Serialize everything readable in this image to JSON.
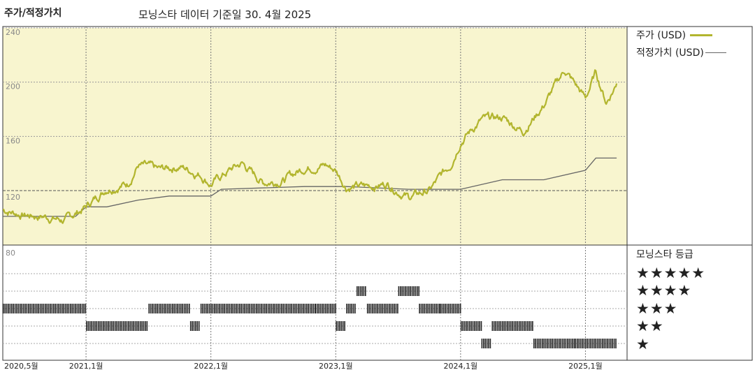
{
  "title": "주가/적정가치",
  "subtitle": "모닝스타 데이터 기준일 30. 4월 2025",
  "legend": {
    "price_label": "주가 (USD)",
    "fair_label": "적정가치 (USD)",
    "price_color": "#b2b52e",
    "fair_color": "#666666"
  },
  "rating": {
    "title": "모닝스타 등급",
    "stars": [
      "★★★★★",
      "★★★★",
      "★★★",
      "★★",
      "★"
    ]
  },
  "chart_data": {
    "type": "line",
    "y_ticks": [
      "240",
      "200",
      "160",
      "120",
      "80"
    ],
    "x_ticks": [
      "2020,5월",
      "2021,1월",
      "2022,1월",
      "2023,1월",
      "2024,1월",
      "2025,1월"
    ],
    "ylim": [
      80,
      240
    ],
    "shaded_range": [
      120,
      240
    ],
    "series": [
      {
        "name": "주가 (USD)",
        "x": [
          "2020-05",
          "2020-07",
          "2020-09",
          "2020-11",
          "2021-01",
          "2021-03",
          "2021-05",
          "2021-06",
          "2021-08",
          "2021-10",
          "2021-12",
          "2022-01",
          "2022-03",
          "2022-04",
          "2022-06",
          "2022-08",
          "2022-10",
          "2022-12",
          "2023-01",
          "2023-02",
          "2023-04",
          "2023-06",
          "2023-08",
          "2023-10",
          "2023-12",
          "2024-01",
          "2024-03",
          "2024-05",
          "2024-07",
          "2024-09",
          "2024-11",
          "2025-01",
          "2025-02",
          "2025-03",
          "2025-04"
        ],
        "values": [
          106,
          102,
          101,
          98,
          108,
          122,
          125,
          139,
          135,
          138,
          132,
          125,
          136,
          140,
          126,
          128,
          137,
          139,
          135,
          123,
          123,
          125,
          115,
          120,
          139,
          157,
          172,
          174,
          164,
          183,
          209,
          188,
          207,
          185,
          199
        ]
      },
      {
        "name": "적정가치 (USD)",
        "x": [
          "2020-05",
          "2020-12",
          "2021-01",
          "2021-03",
          "2021-06",
          "2021-09",
          "2022-01",
          "2022-02",
          "2022-10",
          "2023-02",
          "2023-08",
          "2024-01",
          "2024-05",
          "2024-09",
          "2025-01",
          "2025-02",
          "2025-04"
        ],
        "values": [
          101,
          101,
          108,
          108,
          113,
          116,
          116,
          121,
          123,
          123,
          121,
          121,
          128,
          128,
          135,
          144,
          144
        ]
      }
    ],
    "star_rating_periods": [
      {
        "start": "2020-05",
        "end": "2021-01",
        "stars": 3
      },
      {
        "start": "2021-01",
        "end": "2021-07",
        "stars": 2
      },
      {
        "start": "2021-07",
        "end": "2021-11",
        "stars": 3
      },
      {
        "start": "2021-11",
        "end": "2021-12",
        "stars": 2
      },
      {
        "start": "2021-12",
        "end": "2022-11",
        "stars": 3
      },
      {
        "start": "2022-11",
        "end": "2023-01",
        "stars": 3
      },
      {
        "start": "2023-01",
        "end": "2023-02",
        "stars": 2
      },
      {
        "start": "2023-02",
        "end": "2023-03",
        "stars": 3
      },
      {
        "start": "2023-03",
        "end": "2023-04",
        "stars": 4
      },
      {
        "start": "2023-04",
        "end": "2023-07",
        "stars": 3
      },
      {
        "start": "2023-07",
        "end": "2023-09",
        "stars": 4
      },
      {
        "start": "2023-09",
        "end": "2023-11",
        "stars": 3
      },
      {
        "start": "2023-11",
        "end": "2024-01",
        "stars": 3
      },
      {
        "start": "2024-01",
        "end": "2024-03",
        "stars": 2
      },
      {
        "start": "2024-03",
        "end": "2024-04",
        "stars": 1
      },
      {
        "start": "2024-04",
        "end": "2024-08",
        "stars": 2
      },
      {
        "start": "2024-08",
        "end": "2024-12",
        "stars": 1
      },
      {
        "start": "2024-12",
        "end": "2025-04",
        "stars": 1
      }
    ]
  }
}
